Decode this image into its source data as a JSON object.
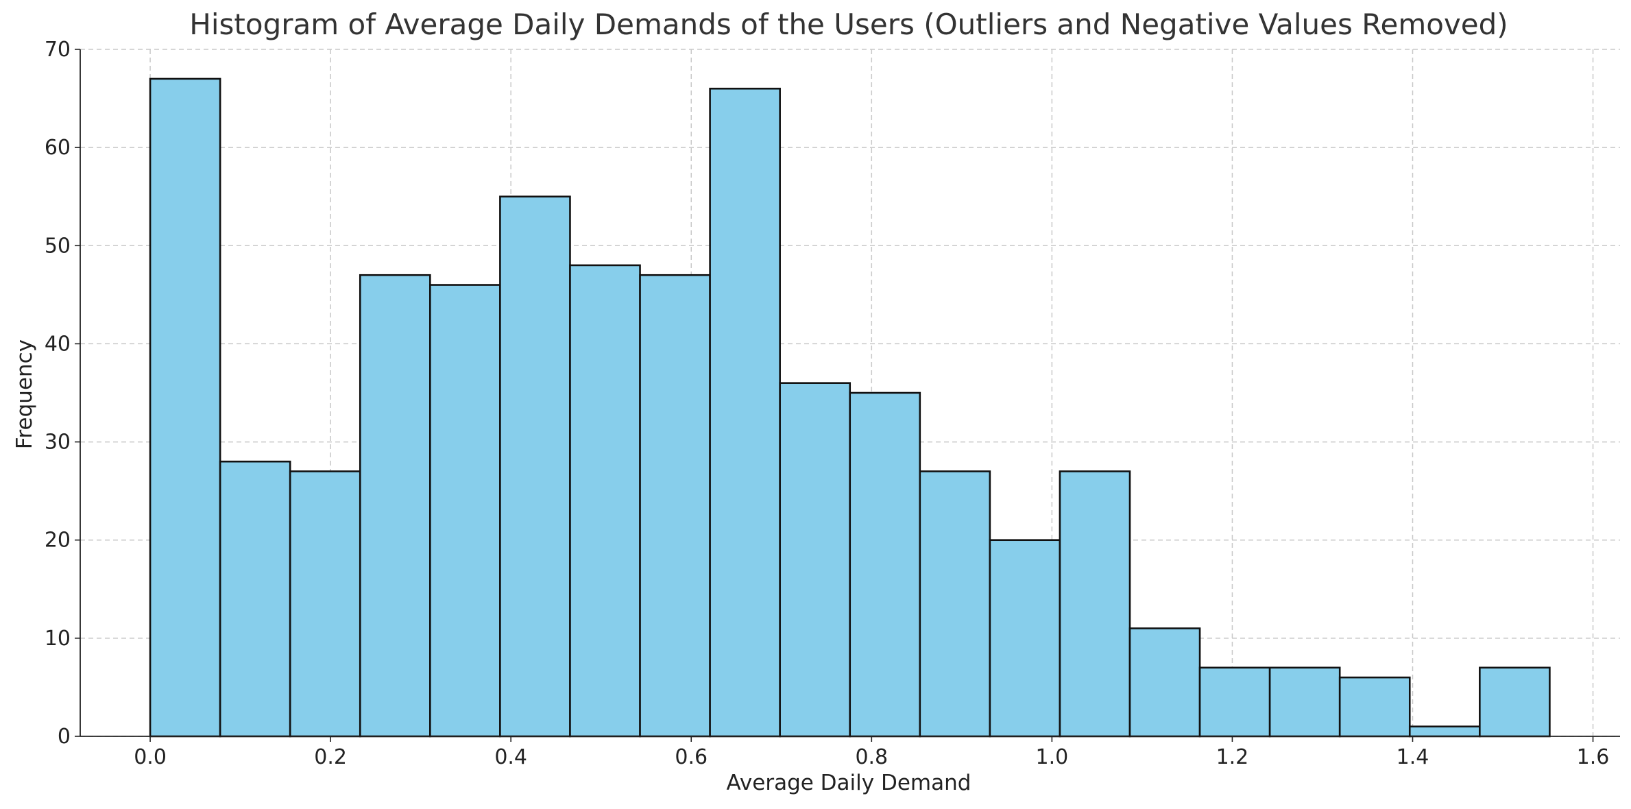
{
  "chart_data": {
    "type": "bar",
    "title": "Histogram of Average Daily Demands of the Users (Outliers and Negative Values Removed)",
    "xlabel": "Average Daily Demand",
    "ylabel": "Frequency",
    "bin_start": 0.0,
    "bin_width": 0.0776,
    "bins": [
      {
        "x0": 0.0,
        "x1": 0.0776,
        "value": 67
      },
      {
        "x0": 0.0776,
        "x1": 0.1552,
        "value": 28
      },
      {
        "x0": 0.1552,
        "x1": 0.2328,
        "value": 27
      },
      {
        "x0": 0.2328,
        "x1": 0.3104,
        "value": 47
      },
      {
        "x0": 0.3104,
        "x1": 0.388,
        "value": 46
      },
      {
        "x0": 0.388,
        "x1": 0.4656,
        "value": 55
      },
      {
        "x0": 0.4656,
        "x1": 0.5432,
        "value": 48
      },
      {
        "x0": 0.5432,
        "x1": 0.6208,
        "value": 47
      },
      {
        "x0": 0.6208,
        "x1": 0.6984,
        "value": 66
      },
      {
        "x0": 0.6984,
        "x1": 0.776,
        "value": 36
      },
      {
        "x0": 0.776,
        "x1": 0.8536,
        "value": 35
      },
      {
        "x0": 0.8536,
        "x1": 0.9312,
        "value": 27
      },
      {
        "x0": 0.9312,
        "x1": 1.0088,
        "value": 20
      },
      {
        "x0": 1.0088,
        "x1": 1.0864,
        "value": 27
      },
      {
        "x0": 1.0864,
        "x1": 1.164,
        "value": 11
      },
      {
        "x0": 1.164,
        "x1": 1.2416,
        "value": 7
      },
      {
        "x0": 1.2416,
        "x1": 1.3192,
        "value": 7
      },
      {
        "x0": 1.3192,
        "x1": 1.3968,
        "value": 6
      },
      {
        "x0": 1.3968,
        "x1": 1.4744,
        "value": 1
      },
      {
        "x0": 1.4744,
        "x1": 1.552,
        "value": 7
      }
    ],
    "xlim": [
      -0.0776,
      1.63
    ],
    "ylim": [
      0,
      70
    ],
    "xticks": [
      "0.0",
      "0.2",
      "0.4",
      "0.6",
      "0.8",
      "1.0",
      "1.2",
      "1.4",
      "1.6"
    ],
    "xtick_values": [
      0.0,
      0.2,
      0.4,
      0.6,
      0.8,
      1.0,
      1.2,
      1.4,
      1.6
    ],
    "yticks": [
      "0",
      "10",
      "20",
      "30",
      "40",
      "50",
      "60",
      "70"
    ],
    "ytick_values": [
      0,
      10,
      20,
      30,
      40,
      50,
      60,
      70
    ],
    "grid": true,
    "bar_color": "#87CEEB",
    "edge_color": "#111111"
  }
}
